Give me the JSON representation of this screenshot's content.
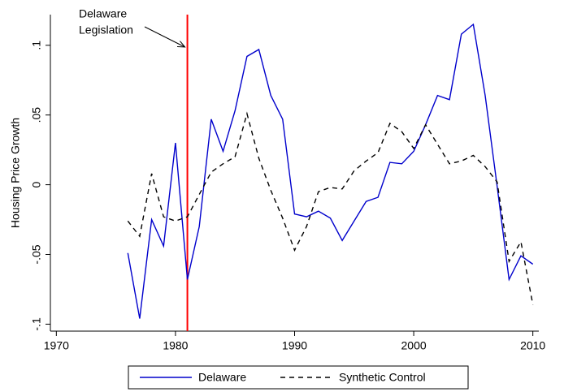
{
  "chart_data": {
    "type": "line",
    "annotation": [
      "Delaware",
      "Legislation"
    ],
    "ylabel": "Housing Price Growth",
    "x": [
      1976,
      1977,
      1978,
      1979,
      1980,
      1981,
      1982,
      1983,
      1984,
      1985,
      1986,
      1987,
      1988,
      1989,
      1990,
      1991,
      1992,
      1993,
      1994,
      1995,
      1996,
      1997,
      1998,
      1999,
      2000,
      2001,
      2002,
      2003,
      2004,
      2005,
      2006,
      2007,
      2008,
      2009,
      2010
    ],
    "series": [
      {
        "name": "Delaware",
        "color": "#0000cc",
        "dash": "solid",
        "values": [
          -0.049,
          -0.096,
          -0.025,
          -0.044,
          0.03,
          -0.068,
          -0.03,
          0.047,
          0.024,
          0.053,
          0.092,
          0.097,
          0.064,
          0.047,
          -0.021,
          -0.023,
          -0.019,
          -0.024,
          -0.04,
          -0.026,
          -0.012,
          -0.009,
          0.016,
          0.015,
          0.024,
          0.043,
          0.064,
          0.061,
          0.108,
          0.115,
          0.064,
          -0.001,
          -0.068,
          -0.051,
          -0.057
        ]
      },
      {
        "name": "Synthetic Control",
        "color": "#000000",
        "dash": "dashed",
        "values": [
          -0.026,
          -0.037,
          0.008,
          -0.023,
          -0.026,
          -0.023,
          -0.007,
          0.009,
          0.015,
          0.02,
          0.051,
          0.019,
          -0.004,
          -0.024,
          -0.047,
          -0.03,
          -0.005,
          -0.002,
          -0.003,
          0.01,
          0.017,
          0.023,
          0.044,
          0.038,
          0.026,
          0.043,
          0.029,
          0.015,
          0.017,
          0.021,
          0.013,
          0.002,
          -0.055,
          -0.041,
          -0.086
        ]
      }
    ],
    "vline": {
      "x": 1981,
      "color": "#ff0000"
    },
    "xlim": [
      1969.5,
      2010.5
    ],
    "xticks": [
      1970,
      1980,
      1990,
      2000,
      2010
    ],
    "ylim": [
      -0.105,
      0.122
    ],
    "yticks": [
      {
        "value": -0.1,
        "label": "-.1"
      },
      {
        "value": -0.05,
        "label": "-.05"
      },
      0,
      {
        "value": 0.05,
        "label": ".05"
      },
      {
        "value": 0.1,
        "label": ".1"
      }
    ],
    "grid": false,
    "legend": "bottom"
  }
}
